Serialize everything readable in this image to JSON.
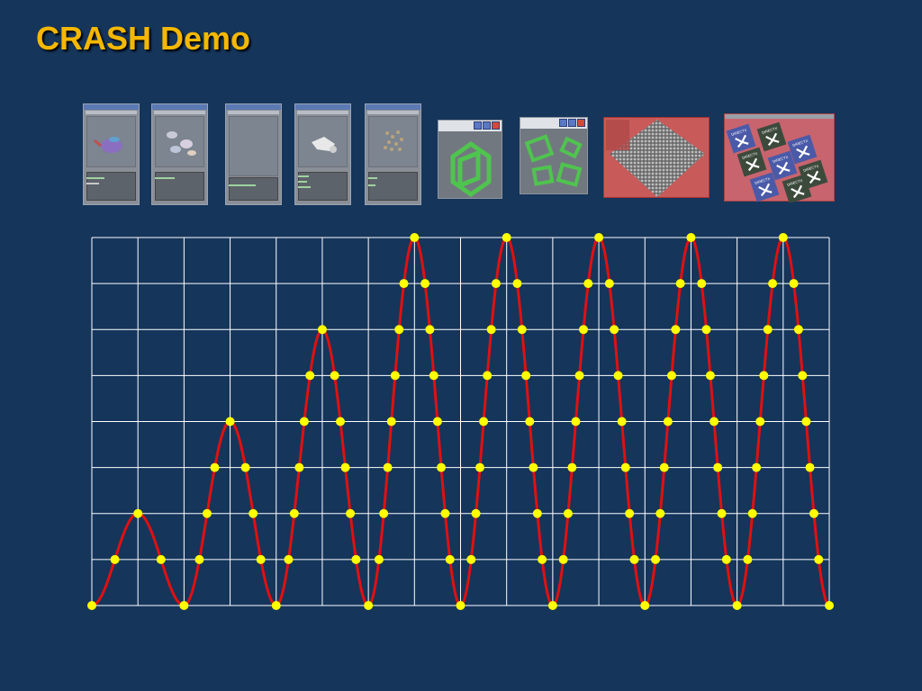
{
  "title": "CRASH Demo",
  "thumbnails": [
    {
      "name": "teapot-window",
      "kind": "app"
    },
    {
      "name": "teapots-window",
      "kind": "app"
    },
    {
      "name": "empty-window",
      "kind": "app"
    },
    {
      "name": "model-window",
      "kind": "app"
    },
    {
      "name": "particles-window",
      "kind": "app"
    },
    {
      "name": "cube-window",
      "kind": "cube"
    },
    {
      "name": "multi-cube-window",
      "kind": "multicube"
    },
    {
      "name": "spheres-window",
      "kind": "red"
    },
    {
      "name": "tiles-window",
      "kind": "tiles"
    }
  ],
  "tile_labels": [
    "DIRECTX",
    "DIRECTX",
    "DIRECTX",
    "DIRECTX",
    "DIRECTX",
    "DIRECTX",
    "DIRECTX",
    "DIRECTX"
  ],
  "colors": {
    "background": "#15355b",
    "title": "#f5b800",
    "grid": "#ffffff",
    "curve": "#e01010",
    "points": "#ffff00"
  },
  "chart_data": {
    "type": "line",
    "title": "",
    "xlabel": "",
    "ylabel": "",
    "xlim": [
      0,
      16
    ],
    "ylim": [
      0,
      8
    ],
    "grid": true,
    "series": [
      {
        "description": "sinusoid whose amplitude grows then saturates",
        "segments": [
          {
            "x_start": 0,
            "x_end": 2,
            "peak": 2
          },
          {
            "x_start": 2,
            "x_end": 4,
            "peak": 4
          },
          {
            "x_start": 4,
            "x_end": 6,
            "peak": 6
          },
          {
            "x_start": 6,
            "x_end": 8,
            "peak": 8
          },
          {
            "x_start": 8,
            "x_end": 10,
            "peak": 8
          },
          {
            "x_start": 10,
            "x_end": 12,
            "peak": 8
          },
          {
            "x_start": 12,
            "x_end": 14,
            "peak": 8
          },
          {
            "x_start": 14,
            "x_end": 16,
            "peak": 8
          }
        ]
      }
    ],
    "markers_at_each_integer_y": true
  }
}
